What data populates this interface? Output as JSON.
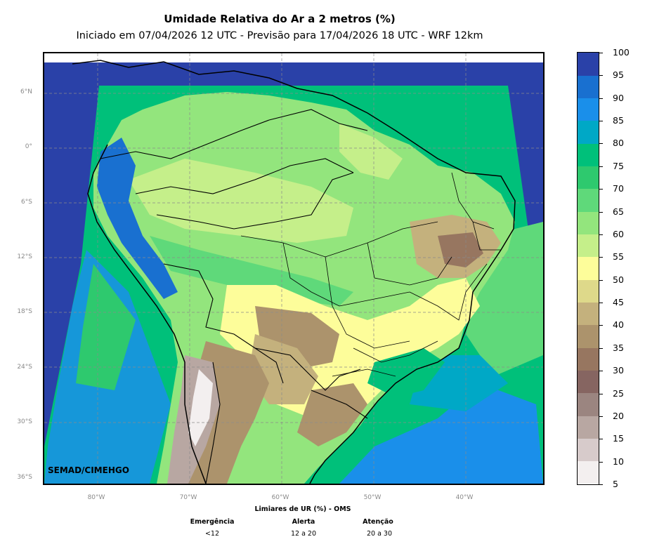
{
  "title": "Umidade Relativa do Ar a 2 metros (%)",
  "subtitle": "Iniciado em 07/04/2026 12 UTC - Previsão para 17/04/2026 18 UTC - WRF 12km",
  "credit": "SEMAD/CIMEHGO",
  "lat_labels": [
    "6°N",
    "0°",
    "6°S",
    "12°S",
    "18°S",
    "24°S",
    "30°S",
    "36°S"
  ],
  "lon_labels": [
    "80°W",
    "70°W",
    "60°W",
    "50°W",
    "40°W"
  ],
  "colorbar": {
    "ticks": [
      "5",
      "10",
      "15",
      "20",
      "25",
      "30",
      "35",
      "40",
      "45",
      "50",
      "55",
      "60",
      "65",
      "70",
      "75",
      "80",
      "85",
      "90",
      "95",
      "100"
    ],
    "colors": [
      "#f3efef",
      "#d7cbcb",
      "#b8a7a2",
      "#9b8580",
      "#866561",
      "#977660",
      "#ac936c",
      "#c4b17d",
      "#ded98a",
      "#fdfd9a",
      "#c5ef8a",
      "#93e57d",
      "#5fd97a",
      "#2ec96e",
      "#00c07a",
      "#00a8c6",
      "#1a8fea",
      "#1970d0",
      "#2a41a8"
    ]
  },
  "who": {
    "heading": "Limiares de UR (%) - OMS",
    "levels": [
      {
        "name": "Emergência",
        "range": "<12"
      },
      {
        "name": "Alerta",
        "range": "12 a 20"
      },
      {
        "name": "Atenção",
        "range": "20 a 30"
      }
    ]
  },
  "colors": {
    "ocean": "#2a41a8",
    "border": "#000000",
    "grid": "#8a8a8a"
  }
}
